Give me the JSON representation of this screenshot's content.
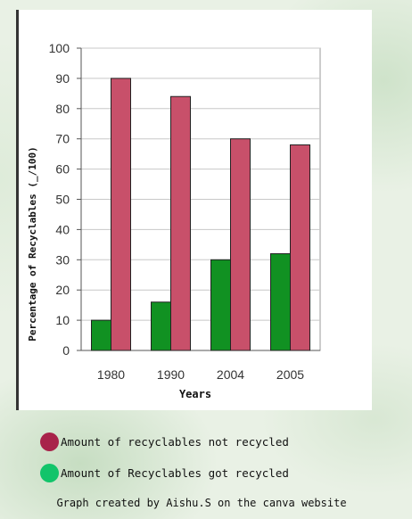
{
  "chart_data": {
    "type": "bar",
    "categories": [
      "1980",
      "1990",
      "2004",
      "2005"
    ],
    "series": [
      {
        "name": "Amount of Recyclables got recycled",
        "values": [
          10,
          16,
          30,
          32
        ],
        "color": "#119122"
      },
      {
        "name": "Amount of recyclables not recycled",
        "values": [
          90,
          84,
          70,
          68
        ],
        "color": "#c8506a"
      }
    ],
    "title": "",
    "xlabel": "Years",
    "ylabel": "Percentage of Recyclables (_/100)",
    "ylim": [
      0,
      100
    ],
    "yticks": [
      0,
      10,
      20,
      30,
      40,
      50,
      60,
      70,
      80,
      90,
      100
    ],
    "grid": true,
    "legend_position": "bottom"
  },
  "legend": [
    {
      "label": "Amount of recyclables not recycled",
      "color": "#a8234a"
    },
    {
      "label": "Amount of Recyclables got recycled",
      "color": "#12c46a"
    }
  ],
  "credit": "Graph created by Aishu.S on the canva website"
}
